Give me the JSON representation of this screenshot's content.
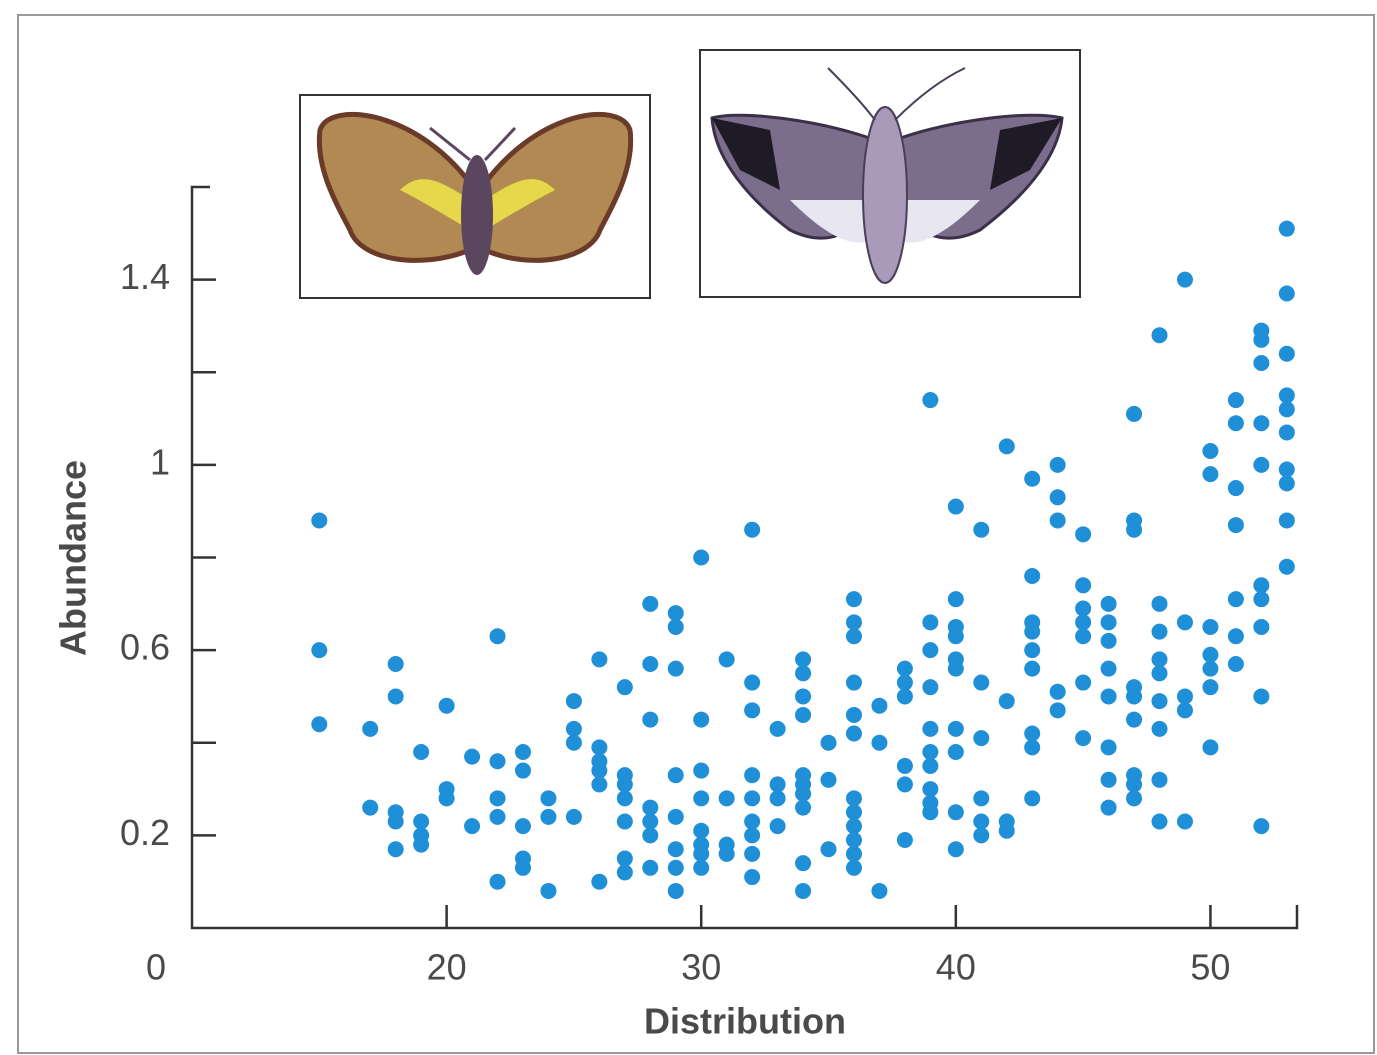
{
  "chart_data": {
    "type": "scatter",
    "x_label": "Distribution",
    "y_label": "Abundance",
    "color": "#1f8fd8",
    "xlim": [
      10,
      53.4
    ],
    "ylim": [
      0,
      1.6
    ],
    "xticks": [
      {
        "value": 10,
        "label": "0"
      },
      20,
      30,
      40,
      50
    ],
    "yticks": [
      0.2,
      0.6,
      1.0,
      1.4
    ],
    "yminor_ticks": [
      0.4,
      0.8,
      1.2
    ],
    "x": [
      15,
      15,
      15,
      17,
      17,
      18,
      18,
      18,
      18,
      18,
      19,
      19,
      19,
      19,
      20,
      20,
      20,
      21,
      21,
      22,
      22,
      22,
      22,
      22,
      23,
      23,
      23,
      23,
      23,
      24,
      24,
      24,
      25,
      25,
      25,
      25,
      26,
      26,
      26,
      26,
      26,
      26,
      27,
      27,
      27,
      27,
      27,
      27,
      27,
      28,
      28,
      28,
      28,
      28,
      28,
      28,
      29,
      29,
      29,
      29,
      29,
      29,
      29,
      29,
      30,
      30,
      30,
      30,
      30,
      30,
      30,
      30,
      31,
      31,
      31,
      31,
      32,
      32,
      32,
      32,
      32,
      32,
      32,
      32,
      32,
      33,
      33,
      33,
      33,
      34,
      34,
      34,
      34,
      34,
      34,
      34,
      34,
      34,
      34,
      35,
      35,
      35,
      36,
      36,
      36,
      36,
      36,
      36,
      36,
      36,
      36,
      36,
      36,
      36,
      37,
      37,
      37,
      38,
      38,
      38,
      38,
      38,
      38,
      39,
      39,
      39,
      39,
      39,
      39,
      39,
      39,
      39,
      39,
      40,
      40,
      40,
      40,
      40,
      40,
      40,
      40,
      40,
      40,
      41,
      41,
      41,
      41,
      41,
      41,
      42,
      42,
      42,
      42,
      43,
      43,
      43,
      43,
      43,
      43,
      43,
      43,
      43,
      44,
      44,
      44,
      44,
      44,
      45,
      45,
      45,
      45,
      45,
      45,
      45,
      46,
      46,
      46,
      46,
      46,
      46,
      46,
      46,
      47,
      47,
      47,
      47,
      47,
      47,
      47,
      47,
      47,
      48,
      48,
      48,
      48,
      48,
      48,
      48,
      48,
      48,
      49,
      49,
      49,
      49,
      49,
      50,
      50,
      50,
      50,
      50,
      50,
      50,
      51,
      51,
      51,
      51,
      51,
      51,
      51,
      52,
      52,
      52,
      52,
      52,
      52,
      52,
      52,
      52,
      52,
      53,
      53,
      53,
      53,
      53,
      53,
      53,
      53,
      53,
      53
    ],
    "values": [
      0.88,
      0.6,
      0.44,
      0.43,
      0.26,
      0.57,
      0.5,
      0.25,
      0.23,
      0.17,
      0.38,
      0.23,
      0.2,
      0.18,
      0.48,
      0.3,
      0.28,
      0.22,
      0.37,
      0.63,
      0.36,
      0.28,
      0.24,
      0.1,
      0.38,
      0.34,
      0.22,
      0.15,
      0.13,
      0.28,
      0.24,
      0.08,
      0.49,
      0.43,
      0.4,
      0.24,
      0.58,
      0.39,
      0.36,
      0.34,
      0.31,
      0.1,
      0.52,
      0.33,
      0.31,
      0.28,
      0.23,
      0.15,
      0.12,
      0.7,
      0.57,
      0.45,
      0.26,
      0.23,
      0.2,
      0.13,
      0.68,
      0.65,
      0.56,
      0.33,
      0.24,
      0.17,
      0.13,
      0.08,
      0.8,
      0.45,
      0.34,
      0.28,
      0.21,
      0.18,
      0.16,
      0.13,
      0.58,
      0.28,
      0.18,
      0.16,
      0.86,
      0.53,
      0.47,
      0.33,
      0.28,
      0.23,
      0.2,
      0.16,
      0.11,
      0.43,
      0.31,
      0.28,
      0.22,
      0.58,
      0.55,
      0.5,
      0.46,
      0.33,
      0.31,
      0.29,
      0.26,
      0.14,
      0.08,
      0.4,
      0.32,
      0.17,
      0.71,
      0.66,
      0.63,
      0.53,
      0.46,
      0.42,
      0.28,
      0.25,
      0.22,
      0.19,
      0.16,
      0.13,
      0.48,
      0.4,
      0.08,
      0.56,
      0.53,
      0.5,
      0.35,
      0.31,
      0.19,
      1.14,
      0.66,
      0.6,
      0.52,
      0.43,
      0.38,
      0.35,
      0.3,
      0.27,
      0.25,
      0.91,
      0.71,
      0.65,
      0.63,
      0.58,
      0.56,
      0.43,
      0.38,
      0.25,
      0.17,
      0.86,
      0.53,
      0.41,
      0.28,
      0.23,
      0.2,
      1.04,
      0.49,
      0.23,
      0.21,
      0.97,
      0.76,
      0.66,
      0.64,
      0.6,
      0.56,
      0.42,
      0.39,
      0.28,
      1.0,
      0.93,
      0.88,
      0.51,
      0.47,
      0.85,
      0.74,
      0.69,
      0.66,
      0.63,
      0.53,
      0.41,
      0.7,
      0.66,
      0.62,
      0.56,
      0.5,
      0.39,
      0.32,
      0.26,
      1.11,
      0.88,
      0.86,
      0.52,
      0.5,
      0.45,
      0.33,
      0.31,
      0.28,
      1.28,
      0.7,
      0.64,
      0.58,
      0.55,
      0.49,
      0.43,
      0.32,
      0.23,
      1.4,
      0.66,
      0.5,
      0.47,
      0.23,
      1.03,
      0.98,
      0.65,
      0.59,
      0.56,
      0.52,
      0.39,
      1.14,
      1.09,
      0.95,
      0.87,
      0.71,
      0.63,
      0.57,
      1.29,
      1.27,
      1.22,
      1.09,
      1.0,
      0.74,
      0.71,
      0.65,
      0.5,
      0.22,
      1.51,
      1.37,
      1.24,
      1.15,
      1.12,
      1.07,
      0.99,
      0.96,
      0.88,
      0.78
    ]
  }
}
